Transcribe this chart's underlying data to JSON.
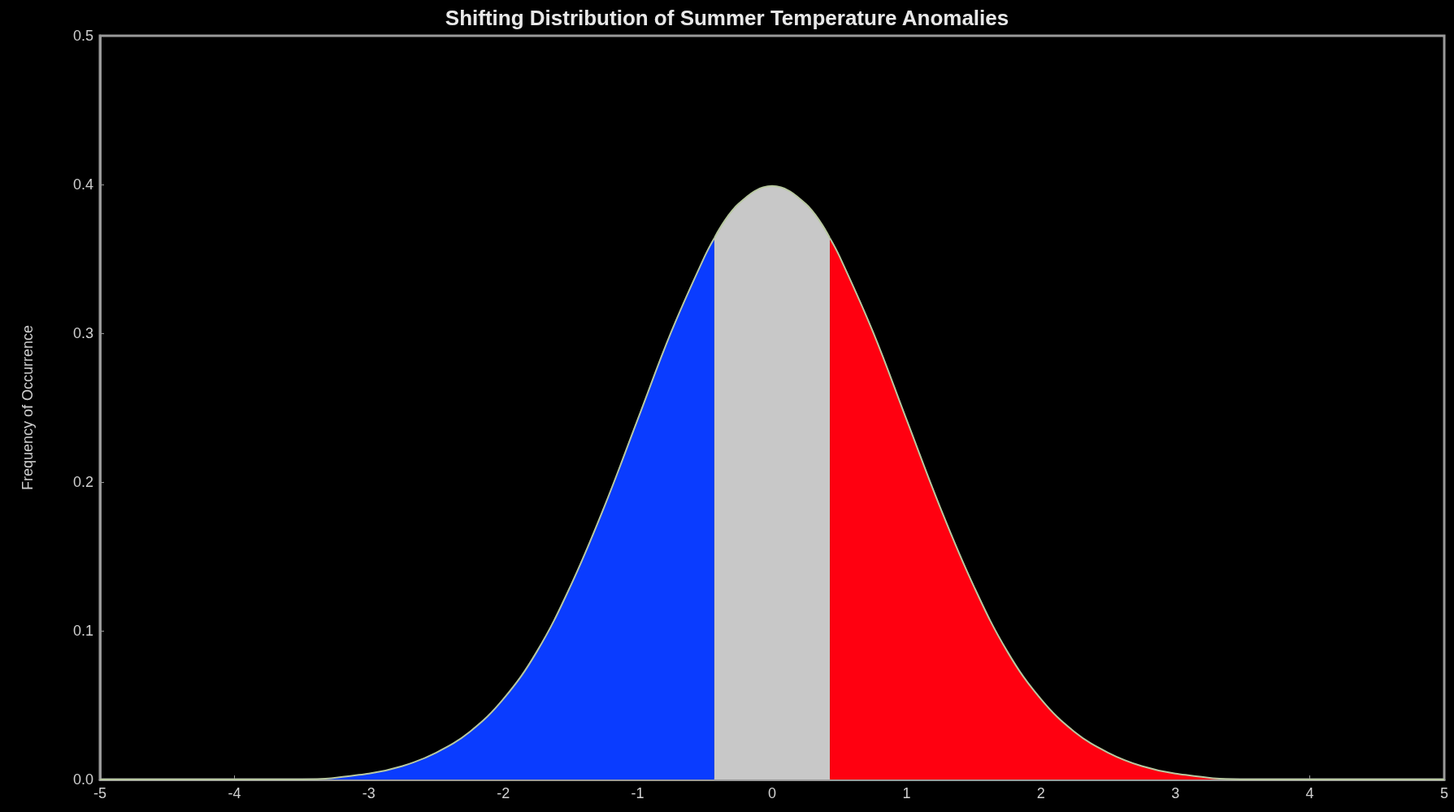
{
  "chart_data": {
    "type": "area",
    "title": "Shifting Distribution of Summer Temperature Anomalies",
    "ylabel": "Frequency of Occurrence",
    "xlim": [
      -5,
      5
    ],
    "xticks": [
      -5,
      -4,
      -3,
      -2,
      -1,
      0,
      1,
      2,
      3,
      4,
      5
    ],
    "ylim": [
      0,
      0.5
    ],
    "yticks": [
      {
        "value": 0,
        "label": "0.0"
      },
      0.1,
      0.2,
      0.3,
      0.4,
      0.5
    ],
    "grid": false,
    "series": [
      {
        "color": "#0a3cff",
        "x": [
          -5,
          -4,
          -3.5,
          -3,
          -2.75,
          -2.5,
          -2.25,
          -2,
          -1.75,
          -1.5,
          -1.25,
          -1,
          -0.75,
          -0.5,
          -0.43
        ],
        "values": [
          0,
          0,
          0,
          0.004,
          0.009,
          0.018,
          0.032,
          0.054,
          0.086,
          0.13,
          0.183,
          0.242,
          0.301,
          0.352,
          0.364
        ]
      },
      {
        "color": "#c8c8c8",
        "x": [
          -0.43,
          -0.25,
          0,
          0.25,
          0.43
        ],
        "values": [
          0.364,
          0.387,
          0.399,
          0.387,
          0.364
        ]
      },
      {
        "color": "#ff0010",
        "x": [
          0.43,
          0.5,
          0.75,
          1,
          1.25,
          1.5,
          1.75,
          2,
          2.25,
          2.5,
          2.75,
          3,
          3.5,
          4,
          5
        ],
        "values": [
          0.364,
          0.352,
          0.301,
          0.242,
          0.183,
          0.13,
          0.086,
          0.054,
          0.032,
          0.018,
          0.009,
          0.004,
          0,
          0,
          0
        ]
      }
    ]
  }
}
